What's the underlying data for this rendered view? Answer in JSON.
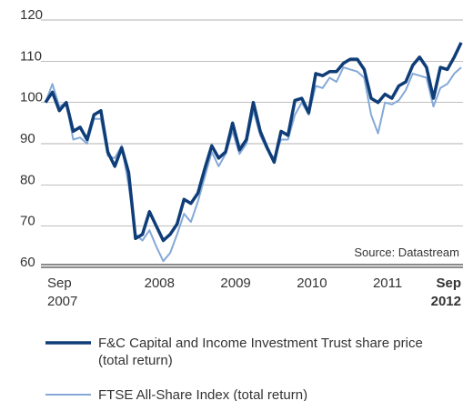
{
  "chart_data": {
    "type": "line",
    "categories": [
      "Sep 2007",
      null,
      null,
      null,
      null,
      null,
      null,
      null,
      null,
      null,
      null,
      null,
      null,
      null,
      "2008",
      null,
      null,
      null,
      null,
      null,
      null,
      null,
      null,
      null,
      null,
      "2009",
      null,
      null,
      null,
      null,
      null,
      null,
      null,
      null,
      null,
      null,
      "2010",
      null,
      null,
      null,
      null,
      null,
      null,
      null,
      null,
      null,
      null,
      "2011",
      null,
      null,
      null,
      null,
      null,
      null,
      null,
      null,
      null,
      null,
      null,
      null,
      "Sep 2012"
    ],
    "series": [
      {
        "name": "F&C Capital and Income Investment Trust share price (total return)",
        "color": "#0f3d78",
        "values": [
          100,
          102.5,
          98,
          100,
          93,
          94,
          91,
          97,
          98,
          88,
          84.5,
          89,
          83,
          67,
          68,
          73.5,
          70,
          66.5,
          68,
          70.5,
          76.5,
          75.5,
          78,
          84,
          89.5,
          86.5,
          88,
          95,
          88.5,
          91,
          100,
          93,
          89,
          85.5,
          93,
          92,
          100.5,
          101,
          97.5,
          107,
          106.5,
          107.5,
          107.5,
          109.5,
          110.5,
          110.5,
          108,
          101,
          100,
          102,
          101,
          104,
          105,
          109,
          111,
          108.5,
          101,
          108.5,
          108,
          111,
          114.5
        ]
      },
      {
        "name": "FTSE All-Share Index (total return)",
        "color": "#84a9d8",
        "values": [
          100,
          104.5,
          99,
          100,
          91,
          91.5,
          90,
          96,
          96,
          87,
          86.5,
          89.5,
          80,
          68,
          66.5,
          69,
          65,
          61.5,
          63.5,
          68,
          73,
          71,
          76,
          82,
          88,
          84.5,
          87.5,
          93,
          87.5,
          90,
          98,
          92,
          88.5,
          86.5,
          91,
          91,
          97,
          100,
          97,
          104,
          103.5,
          106,
          105,
          108.5,
          108,
          107.5,
          106,
          97,
          92.5,
          100,
          99.5,
          100.5,
          103,
          107,
          106.5,
          106,
          99,
          103.5,
          104.5,
          107,
          108.5
        ]
      }
    ],
    "ylim": [
      60,
      120
    ],
    "yticks": [
      60,
      70,
      80,
      90,
      100,
      110,
      120
    ],
    "grid": true,
    "annotation": "Source: Datastream"
  }
}
